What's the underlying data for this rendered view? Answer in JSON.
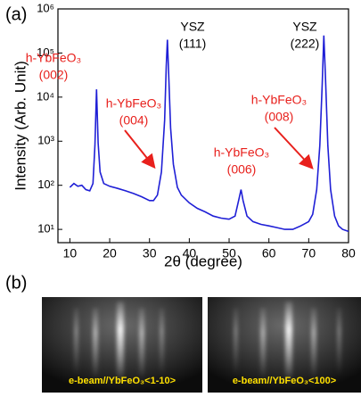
{
  "chart_data": {
    "type": "line",
    "panel_label": "(a)",
    "xlabel": "2θ (degree)",
    "ylabel": "Intensity (Arb. Unit)",
    "xlim": [
      7,
      80
    ],
    "xticks": [
      10,
      20,
      30,
      40,
      50,
      60,
      70,
      80
    ],
    "ylim": [
      5,
      1000000
    ],
    "yscale": "log",
    "yticks": [
      {
        "value": 10,
        "label": "10¹"
      },
      {
        "value": 100,
        "label": "10²"
      },
      {
        "value": 1000,
        "label": "10³"
      },
      {
        "value": 10000,
        "label": "10⁴"
      },
      {
        "value": 100000,
        "label": "10⁵"
      },
      {
        "value": 1000000,
        "label": "10⁶"
      }
    ],
    "series": [
      {
        "color": "#1f1fd6",
        "x": [
          10,
          11,
          12,
          13,
          14,
          15,
          15.8,
          16.3,
          16.7,
          17.1,
          17.6,
          18.5,
          20,
          22,
          24,
          26,
          28,
          30,
          31,
          32,
          33,
          33.8,
          34.2,
          34.5,
          34.8,
          35.3,
          36,
          37,
          38,
          40,
          42,
          44,
          46,
          48,
          50,
          51.5,
          52.5,
          53,
          53.5,
          54.5,
          56,
          58,
          60,
          62,
          64,
          66,
          68,
          70,
          71,
          72,
          72.8,
          73.4,
          73.8,
          74.2,
          74.8,
          75.5,
          76.5,
          77.5,
          78.5,
          80
        ],
        "values": [
          90,
          110,
          95,
          100,
          80,
          75,
          110,
          800,
          15000,
          900,
          200,
          110,
          95,
          85,
          75,
          65,
          55,
          45,
          45,
          60,
          200,
          3000,
          50000,
          200000,
          40000,
          2000,
          300,
          90,
          60,
          40,
          30,
          25,
          20,
          18,
          17,
          20,
          50,
          80,
          45,
          20,
          15,
          13,
          12,
          11,
          10,
          10,
          12,
          15,
          22,
          80,
          800,
          20000,
          250000,
          30000,
          800,
          80,
          20,
          12,
          10,
          9
        ]
      }
    ],
    "annotations": [
      {
        "lines": [
          "h-YbFeO₃",
          "(002)"
        ],
        "color": "#e8201c"
      },
      {
        "lines": [
          "h-YbFeO₃",
          "(004)"
        ],
        "color": "#e8201c"
      },
      {
        "lines": [
          "YSZ",
          "(111)"
        ],
        "color": "#000000"
      },
      {
        "lines": [
          "h-YbFeO₃",
          "(006)"
        ],
        "color": "#e8201c"
      },
      {
        "lines": [
          "h-YbFeO₃",
          "(008)"
        ],
        "color": "#e8201c"
      },
      {
        "lines": [
          "YSZ",
          "(222)"
        ],
        "color": "#000000"
      }
    ]
  },
  "images": {
    "panel_label": "(b)",
    "captions": [
      "e-beam//YbFeO₃<1-10>",
      "e-beam//YbFeO₃<100>"
    ]
  }
}
